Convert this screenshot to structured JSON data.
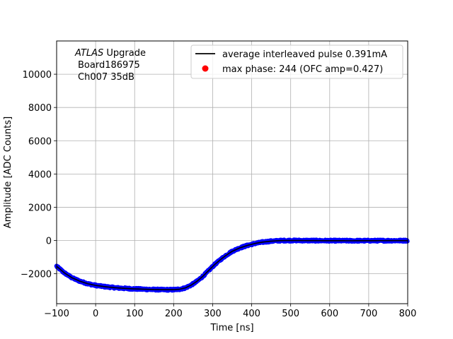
{
  "chart_data": {
    "type": "scatter",
    "title": "",
    "xlabel": "Time [ns]",
    "ylabel": "Amplitude [ADC Counts]",
    "xlim": [
      -100,
      800
    ],
    "ylim": [
      -3800,
      12000
    ],
    "xticks": [
      -100,
      0,
      100,
      200,
      300,
      400,
      500,
      600,
      700,
      800
    ],
    "yticks": [
      -2000,
      0,
      2000,
      4000,
      6000,
      8000,
      10000
    ],
    "grid": true,
    "legend_position": "top-right",
    "annotation": {
      "experiment_italic": "ATLAS",
      "experiment_rest": " Upgrade",
      "board": "Board186975",
      "channel": "Ch007 35dB"
    },
    "series": [
      {
        "name": "average interleaved pulse 0.391mA",
        "kind": "line",
        "color": "#000000",
        "x": [
          -100,
          -80,
          -60,
          -40,
          -20,
          0,
          25,
          50,
          75,
          100,
          125,
          150,
          175,
          200,
          215,
          230,
          245,
          260,
          275,
          290,
          305,
          320,
          335,
          350,
          370,
          390,
          410,
          430,
          450,
          470,
          490,
          510,
          540,
          580,
          650,
          720,
          800
        ],
        "y": [
          -1550,
          -1950,
          -2250,
          -2450,
          -2600,
          -2700,
          -2780,
          -2840,
          -2880,
          -2910,
          -2930,
          -2950,
          -2960,
          -2960,
          -2930,
          -2850,
          -2680,
          -2450,
          -2150,
          -1800,
          -1450,
          -1150,
          -880,
          -650,
          -440,
          -290,
          -170,
          -90,
          -40,
          -10,
          0,
          0,
          -5,
          -10,
          -15,
          -10,
          -5
        ]
      },
      {
        "name": "max phase: 244 (OFC amp=0.427)",
        "kind": "points",
        "color": "#ff0000",
        "x": [],
        "y": []
      },
      {
        "name": "",
        "kind": "samples",
        "color": "#0000ff",
        "noise": 45
      }
    ]
  }
}
